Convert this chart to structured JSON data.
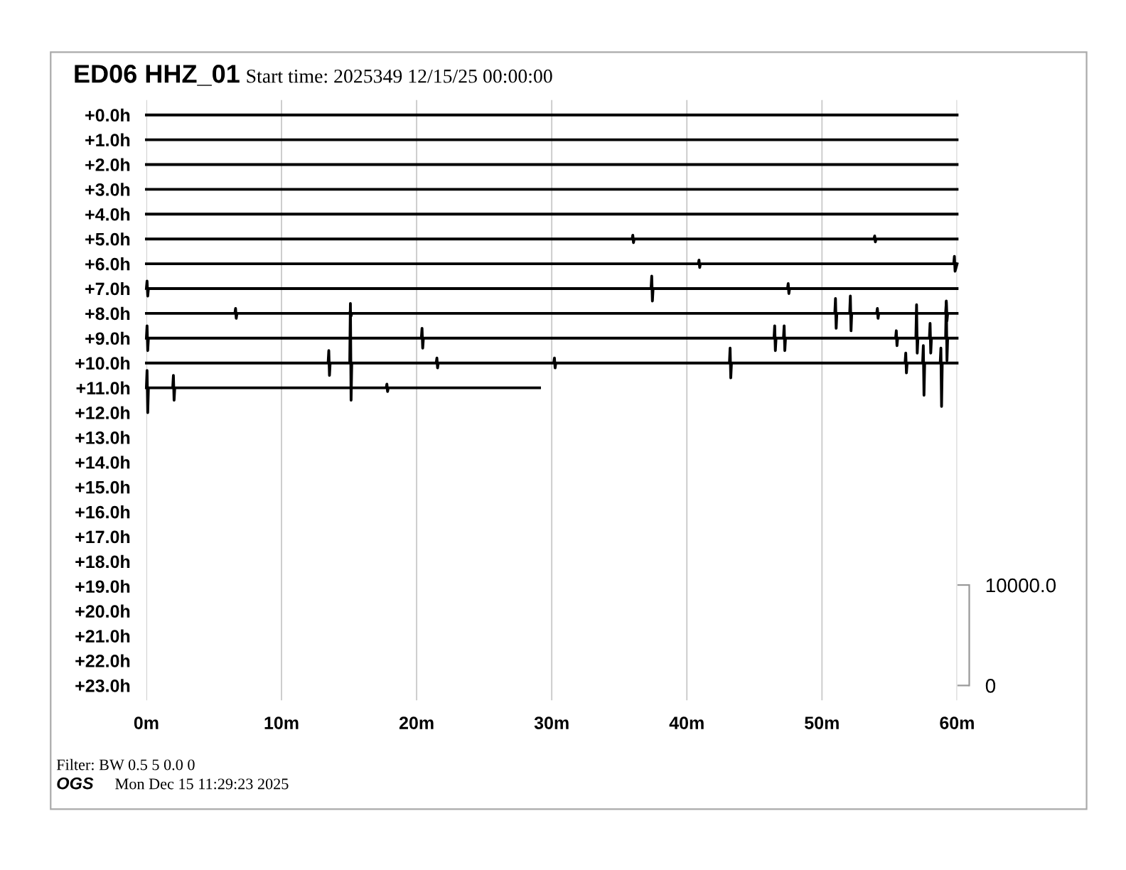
{
  "chart_data": {
    "type": "line",
    "title": "ED06 HHZ_01",
    "subtitle": "Start time: 2025349 12/15/25 00:00:00",
    "annotations": [
      "Filter: BW 0.5 5 0.0 0",
      "OGS",
      "Mon Dec 15 11:29:23 2025"
    ],
    "xlim": [
      0,
      60
    ],
    "xticks": [
      {
        "value": 0,
        "label": "0m"
      },
      {
        "value": 10,
        "label": "10m"
      },
      {
        "value": 20,
        "label": "20m"
      },
      {
        "value": 30,
        "label": "30m"
      },
      {
        "value": 40,
        "label": "40m"
      },
      {
        "value": 50,
        "label": "50m"
      },
      {
        "value": 60,
        "label": "60m"
      }
    ],
    "ylim": [
      23.6,
      -0.6
    ],
    "yticks": [
      {
        "value": 0,
        "label": "+0.0h"
      },
      {
        "value": 1,
        "label": "+1.0h"
      },
      {
        "value": 2,
        "label": "+2.0h"
      },
      {
        "value": 3,
        "label": "+3.0h"
      },
      {
        "value": 4,
        "label": "+4.0h"
      },
      {
        "value": 5,
        "label": "+5.0h"
      },
      {
        "value": 6,
        "label": "+6.0h"
      },
      {
        "value": 7,
        "label": "+7.0h"
      },
      {
        "value": 8,
        "label": "+8.0h"
      },
      {
        "value": 9,
        "label": "+9.0h"
      },
      {
        "value": 10,
        "label": "+10.0h"
      },
      {
        "value": 11,
        "label": "+11.0h"
      },
      {
        "value": 12,
        "label": "+12.0h"
      },
      {
        "value": 13,
        "label": "+13.0h"
      },
      {
        "value": 14,
        "label": "+14.0h"
      },
      {
        "value": 15,
        "label": "+15.0h"
      },
      {
        "value": 16,
        "label": "+16.0h"
      },
      {
        "value": 17,
        "label": "+17.0h"
      },
      {
        "value": 18,
        "label": "+18.0h"
      },
      {
        "value": 19,
        "label": "+19.0h"
      },
      {
        "value": 20,
        "label": "+20.0h"
      },
      {
        "value": 21,
        "label": "+21.0h"
      },
      {
        "value": 22,
        "label": "+22.0h"
      },
      {
        "value": 23,
        "label": "+23.0h"
      }
    ],
    "y2lim": [
      -1480,
      58270
    ],
    "y2ticks": [
      0,
      {
        "value": 10000,
        "label": "10000.0"
      }
    ],
    "grid": "x",
    "legend": false,
    "series": [
      {
        "color": "#000000",
        "x": [
          0,
          60
        ],
        "values": [
          0,
          0
        ]
      },
      {
        "color": "#000000",
        "x": [
          0,
          60
        ],
        "values": [
          1,
          1
        ]
      },
      {
        "color": "#000000",
        "x": [
          0,
          60
        ],
        "values": [
          2,
          2
        ]
      },
      {
        "color": "#000000",
        "x": [
          0,
          60
        ],
        "values": [
          3,
          3
        ]
      },
      {
        "color": "#000000",
        "x": [
          0,
          60
        ],
        "values": [
          4,
          4
        ]
      },
      {
        "color": "#000000",
        "x": [
          0,
          35.95,
          36,
          36.05,
          36.1,
          53.85,
          53.9,
          53.95,
          54,
          60
        ],
        "values": [
          5,
          5,
          4.85,
          5.15,
          5,
          5,
          4.88,
          5.12,
          5,
          5
        ]
      },
      {
        "color": "#000000",
        "x": [
          0,
          40.85,
          40.9,
          40.95,
          41,
          59.75,
          59.8,
          59.85,
          60
        ],
        "values": [
          6,
          6,
          5.85,
          6.15,
          6,
          6,
          5.7,
          6.3,
          6
        ]
      },
      {
        "color": "#000000",
        "x": [
          0,
          0.05,
          0.1,
          0.15,
          37.35,
          37.4,
          37.45,
          37.5,
          47.45,
          47.5,
          47.55,
          47.6,
          60
        ],
        "values": [
          7,
          6.7,
          7.3,
          7,
          7,
          6.5,
          7.5,
          7,
          7,
          6.8,
          7.2,
          7,
          7
        ]
      },
      {
        "color": "#000000",
        "x": [
          0,
          6.55,
          6.6,
          6.65,
          6.7,
          15.05,
          15.1,
          15.15,
          15.2,
          50.95,
          51,
          51.05,
          51.1,
          52.05,
          52.1,
          52.15,
          52.2,
          54.05,
          54.1,
          54.15,
          54.2,
          59.15,
          59.2,
          59.25,
          59.3,
          60
        ],
        "values": [
          8,
          8,
          7.8,
          8.2,
          8,
          8,
          7.9,
          8.1,
          8,
          8,
          7.4,
          8.6,
          8,
          8,
          7.3,
          8.7,
          8,
          8,
          7.8,
          8.2,
          8,
          8,
          7.55,
          8.3,
          8,
          8
        ]
      },
      {
        "color": "#000000",
        "x": [
          0,
          0.05,
          0.1,
          0.15,
          20.35,
          20.4,
          20.45,
          20.5,
          46.45,
          46.5,
          46.55,
          46.6,
          47.15,
          47.2,
          47.25,
          47.3,
          55.45,
          55.5,
          55.55,
          55.6,
          56.95,
          57,
          57.05,
          57.1,
          57.95,
          58,
          58.05,
          58.1,
          59.15,
          59.2,
          59.25,
          59.3,
          60
        ],
        "values": [
          9,
          8.5,
          9.5,
          9,
          9,
          8.6,
          9.4,
          9,
          9,
          8.5,
          9.5,
          9,
          9,
          8.5,
          9.5,
          9,
          9,
          8.7,
          9.3,
          9,
          9,
          7.65,
          9.6,
          9,
          9,
          8.4,
          9.6,
          9,
          9,
          7.5,
          9.9,
          9,
          9
        ]
      },
      {
        "color": "#000000",
        "x": [
          0,
          13.45,
          13.5,
          13.55,
          13.6,
          15.05,
          15.1,
          15.15,
          15.2,
          21.45,
          21.5,
          21.55,
          21.6,
          30.15,
          30.2,
          30.25,
          30.3,
          43.15,
          43.2,
          43.25,
          43.3,
          56.15,
          56.2,
          56.25,
          56.3,
          57.45,
          57.5,
          57.55,
          57.6,
          58.75,
          58.8,
          58.85,
          58.9,
          60
        ],
        "values": [
          10,
          10,
          9.5,
          10.5,
          10,
          10,
          7.6,
          11.5,
          10,
          10,
          9.8,
          10.2,
          10,
          10,
          9.8,
          10.2,
          10,
          10,
          9.4,
          10.6,
          10,
          10,
          9.6,
          10.4,
          10,
          10,
          9.3,
          11.3,
          10,
          10,
          9.4,
          11.75,
          10,
          10
        ]
      },
      {
        "color": "#000000",
        "x": [
          0,
          0.05,
          0.1,
          0.15,
          1.95,
          2,
          2.05,
          2.1,
          17.75,
          17.8,
          17.85,
          17.9,
          29.1
        ],
        "values": [
          11,
          10.3,
          12,
          11,
          11,
          10.5,
          11.5,
          11,
          11,
          10.85,
          11.15,
          11,
          11
        ]
      }
    ]
  }
}
